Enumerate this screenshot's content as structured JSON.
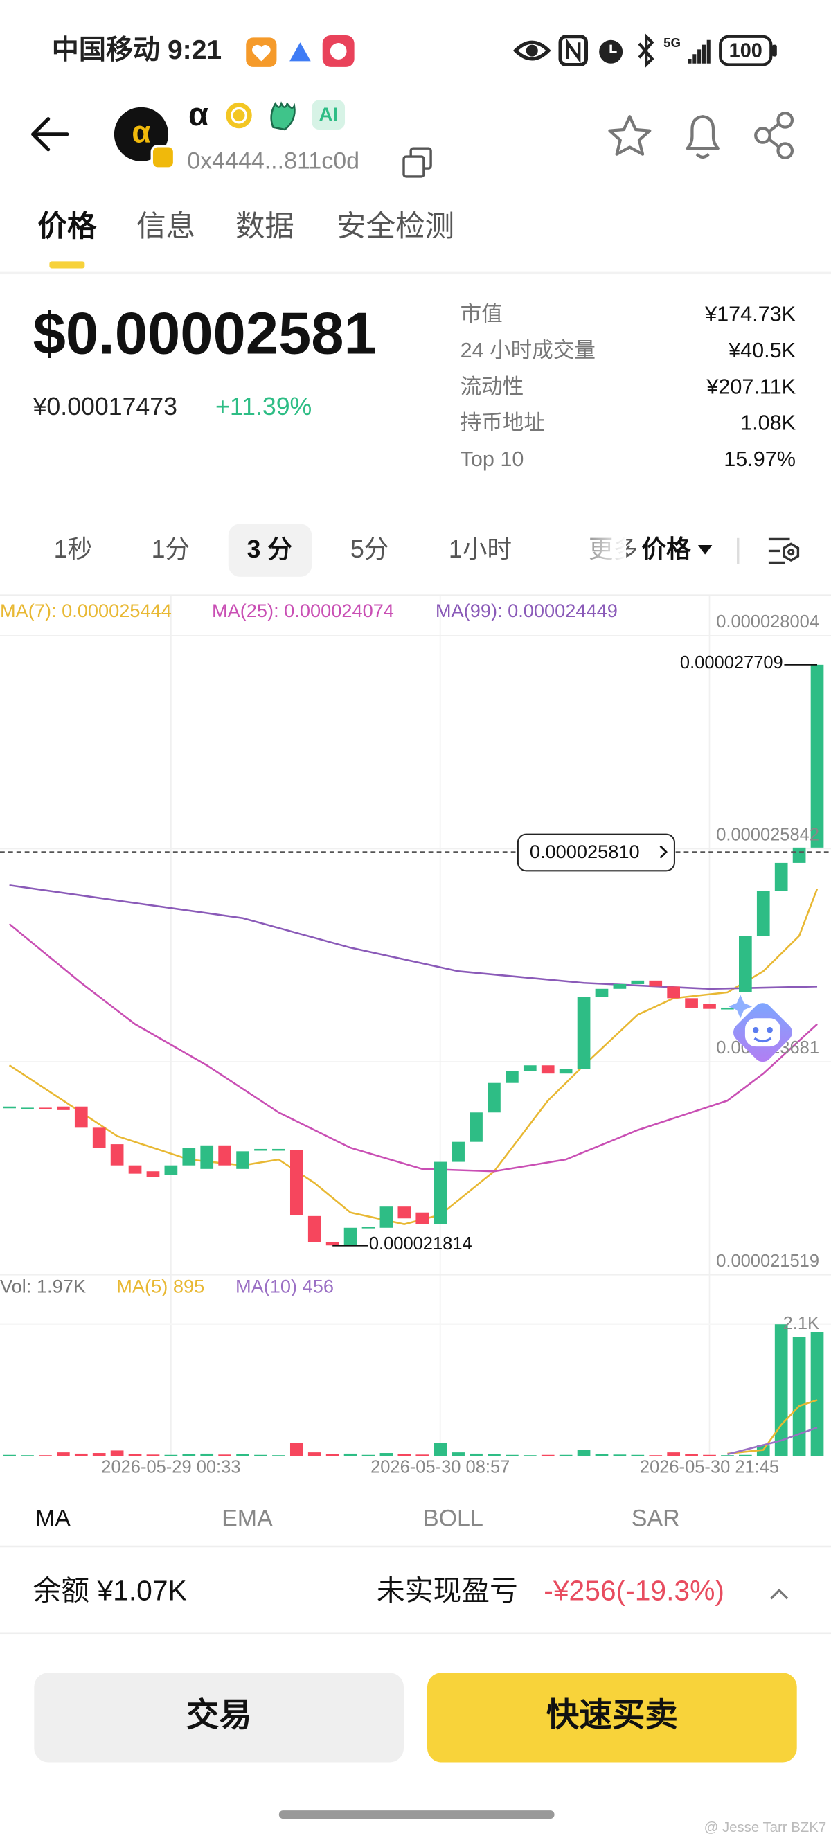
{
  "status_bar": {
    "carrier_time": "中国移动 9:21",
    "network": "5G",
    "battery": "100"
  },
  "header": {
    "token_name": "α",
    "badge": "AI",
    "address": "0x4444...811c0d"
  },
  "tabs": [
    "价格",
    "信息",
    "数据",
    "安全检测"
  ],
  "price": {
    "usd": "$0.00002581",
    "cny": "¥0.00017473",
    "change": "+11.39%"
  },
  "stats": [
    {
      "label": "市值",
      "value": "¥174.73K"
    },
    {
      "label": "24 小时成交量",
      "value": "¥40.5K"
    },
    {
      "label": "流动性",
      "value": "¥207.11K"
    },
    {
      "label": "持币地址",
      "value": "1.08K"
    },
    {
      "label": "Top 10",
      "value": "15.97%"
    }
  ],
  "intervals": [
    "1秒",
    "1分",
    "3 分",
    "5分",
    "1小时",
    "更多"
  ],
  "chart_mode": "价格",
  "chart_data": {
    "type": "candlestick",
    "open": [
      2.3215e-05,
      2.3215e-05,
      2.3215e-05,
      2.3227e-05,
      2.3227e-05,
      2.3012e-05,
      2.2845e-05,
      2.263e-05,
      2.257e-05,
      2.2534e-05,
      2.263e-05,
      2.2594e-05,
      2.2833e-05,
      2.2594e-05,
      2.2785e-05,
      2.2785e-05,
      2.2785e-05,
      2.2116e-05,
      2.1853e-05,
      2.1818e-05,
      2.1997e-05,
      2.1997e-05,
      2.2212e-05,
      2.2152e-05,
      2.2033e-05,
      2.2666e-05,
      2.2869e-05,
      2.3167e-05,
      2.3466e-05,
      2.3585e-05,
      2.3645e-05,
      2.3561e-05,
      2.3609e-05,
      2.4338e-05,
      2.4421e-05,
      2.4469e-05,
      2.4505e-05,
      2.4445e-05,
      2.4326e-05,
      2.4266e-05,
      2.4218e-05,
      2.4385e-05,
      2.4959e-05,
      2.5412e-05,
      2.5699e-05,
      2.5854e-05
    ],
    "close": [
      2.3227e-05,
      2.3215e-05,
      2.3203e-05,
      2.3191e-05,
      2.3012e-05,
      2.2809e-05,
      2.263e-05,
      2.2546e-05,
      2.251e-05,
      2.263e-05,
      2.2809e-05,
      2.2833e-05,
      2.263e-05,
      2.2773e-05,
      2.2797e-05,
      2.2797e-05,
      2.2128e-05,
      2.1853e-05,
      2.1818e-05,
      2.1997e-05,
      2.2009e-05,
      2.2212e-05,
      2.2092e-05,
      2.2033e-05,
      2.2666e-05,
      2.2869e-05,
      2.3167e-05,
      2.3466e-05,
      2.3585e-05,
      2.3645e-05,
      2.3561e-05,
      2.3609e-05,
      2.4338e-05,
      2.4421e-05,
      2.4469e-05,
      2.4505e-05,
      2.4445e-05,
      2.4326e-05,
      2.423e-05,
      2.4218e-05,
      2.423e-05,
      2.4959e-05,
      2.5412e-05,
      2.5699e-05,
      2.5854e-05,
      2.7709e-05
    ],
    "colors": {
      "up": "#2ebd85",
      "down": "#f6465d"
    },
    "ylim": [
      2.1519e-05,
      2.8004e-05
    ],
    "yticks": [
      2.8004e-05,
      2.5842e-05,
      2.3681e-05,
      2.1519e-05
    ],
    "xticks": [
      {
        "value": 9,
        "label": "2026-05-29 00:33"
      },
      {
        "value": 24,
        "label": "2026-05-30 08:57"
      },
      {
        "value": 39,
        "label": "2026-05-30 21:45"
      }
    ],
    "grid": true,
    "current_price": {
      "value": 2.581e-05,
      "label": "0.000025810"
    },
    "annotations": {
      "high": 2.7709e-05,
      "low": 2.1814e-05
    },
    "ma_series": [
      {
        "name": "MA(7): 0.000025444",
        "color": "#e8b833",
        "x": [
          0,
          3,
          6,
          10,
          13,
          15,
          17,
          19,
          22,
          24,
          27,
          30,
          32,
          35,
          37,
          40,
          42,
          44,
          45
        ],
        "values": [
          2.3645e-05,
          2.3287e-05,
          2.2928e-05,
          2.269e-05,
          2.263e-05,
          2.269e-05,
          2.2451e-05,
          2.2152e-05,
          2.2033e-05,
          2.2128e-05,
          2.257e-05,
          2.3287e-05,
          2.3645e-05,
          2.4158e-05,
          2.4326e-05,
          2.4385e-05,
          2.46e-05,
          2.4959e-05,
          2.5436e-05
        ]
      },
      {
        "name": "MA(25): 0.000024074",
        "color": "#c94fb4",
        "x": [
          0,
          4,
          7,
          11,
          15,
          19,
          23,
          27,
          31,
          35,
          39,
          40,
          42,
          45
        ],
        "values": [
          2.5078e-05,
          2.4481e-05,
          2.4063e-05,
          2.3645e-05,
          2.3167e-05,
          2.2809e-05,
          2.2594e-05,
          2.257e-05,
          2.269e-05,
          2.2988e-05,
          2.3227e-05,
          2.3287e-05,
          2.3561e-05,
          2.4063e-05
        ]
      },
      {
        "name": "MA(99): 0.000024449",
        "color": "#8a5ab8",
        "x": [
          0,
          6,
          13,
          19,
          25,
          32,
          39,
          45
        ],
        "values": [
          2.5472e-05,
          2.5317e-05,
          2.5138e-05,
          2.4839e-05,
          2.46e-05,
          2.4481e-05,
          2.4421e-05,
          2.4445e-05
        ]
      }
    ],
    "volume": {
      "legend": "Vol: 1.97K",
      "values": [
        20,
        15,
        15,
        60,
        40,
        50,
        90,
        30,
        25,
        20,
        30,
        40,
        25,
        30,
        20,
        15,
        210,
        60,
        30,
        40,
        20,
        50,
        30,
        25,
        210,
        60,
        40,
        30,
        20,
        15,
        20,
        20,
        100,
        30,
        25,
        20,
        15,
        60,
        30,
        20,
        15,
        20,
        170,
        2100,
        1900,
        1970
      ],
      "ylim": [
        0,
        2100
      ],
      "yticks": [
        {
          "value": 2100,
          "label": "2.1K"
        }
      ],
      "series": [
        {
          "name": "MA(5) 895",
          "color": "#e8b833",
          "x": [
            40,
            42,
            43,
            44,
            45
          ],
          "values": [
            40,
            100,
            500,
            800,
            895
          ]
        },
        {
          "name": "MA(10) 456",
          "color": "#9a6fc4",
          "x": [
            40,
            43,
            45
          ],
          "values": [
            30,
            250,
            456
          ]
        }
      ]
    }
  },
  "indicator_tabs": [
    "MA",
    "EMA",
    "BOLL",
    "SAR"
  ],
  "footer": {
    "balance": "余额 ¥1.07K",
    "pnl_label": "未实现盈亏",
    "pnl_value": "-¥256(-19.3%)"
  },
  "buttons": [
    "交易",
    "快速买卖"
  ],
  "watermark": "@ Jesse Tarr BZK7"
}
